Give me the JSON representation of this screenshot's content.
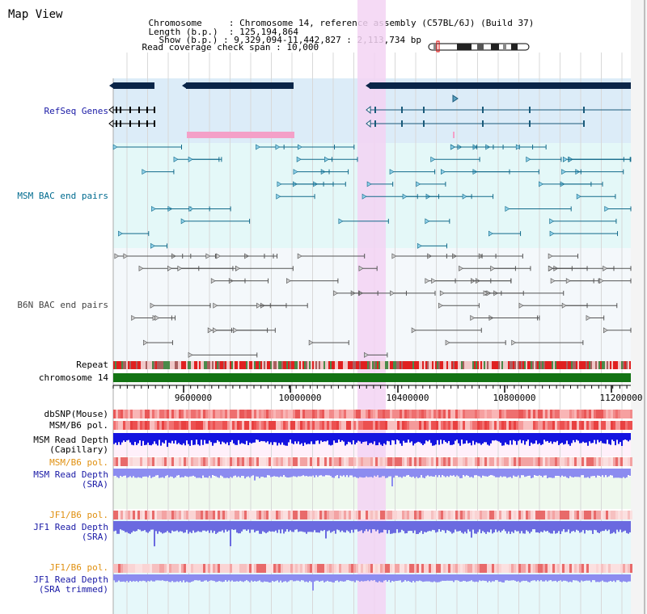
{
  "title": "Map View",
  "info": {
    "chromosome_label": "Chromosome",
    "chromosome_value": "Chromosome 14, reference assembly (C57BL/6J) (Build 37)",
    "length_label": "Length (b.p.)",
    "length_value": "125,194,864",
    "show_label": "Show (b.p.)",
    "show_value": "9,329,094-11,442,827 : 2,113,734 bp",
    "coverage_label": "Read coverage check span",
    "coverage_value": "10,000"
  },
  "track_labels": {
    "refseq": "RefSeq Genes",
    "msm_bac": "MSM BAC end pairs",
    "b6n_bac": "B6N BAC end pairs",
    "repeat": "Repeat",
    "chromosome": "chromosome 14",
    "dbsnp": "dbSNP(Mouse)",
    "msm_pol_1": "MSM/B6 pol.",
    "msm_depth_cap_1": "MSM Read Depth",
    "msm_depth_cap_2": "(Capillary)",
    "msm_pol_2": "MSM/B6 pol.",
    "msm_depth_sra_1": "MSM Read Depth",
    "msm_depth_sra_2": "(SRA)",
    "jf1_pol_1": "JF1/B6 pol.",
    "jf1_depth_sra_1": "JF1 Read Depth",
    "jf1_depth_sra_2": "(SRA)",
    "jf1_pol_2": "JF1/B6 pol.",
    "jf1_trim_1": "JF1 Read Depth",
    "jf1_trim_2": "(SRA trimmed)"
  },
  "axis_ticks": [
    "9600000",
    "10000000",
    "10400000",
    "10800000",
    "11200000"
  ],
  "colors": {
    "label_default": "#000000",
    "label_blue": "#1a1aa6",
    "label_teal": "#006b8f",
    "label_gray": "#444444",
    "label_orange": "#e09010",
    "highlight": "#f3d3f3",
    "chromosome_bar": "#137313",
    "gene_cyan_bg": "#dcecf8",
    "bac_msm_bg": "#e4f8f8"
  }
}
